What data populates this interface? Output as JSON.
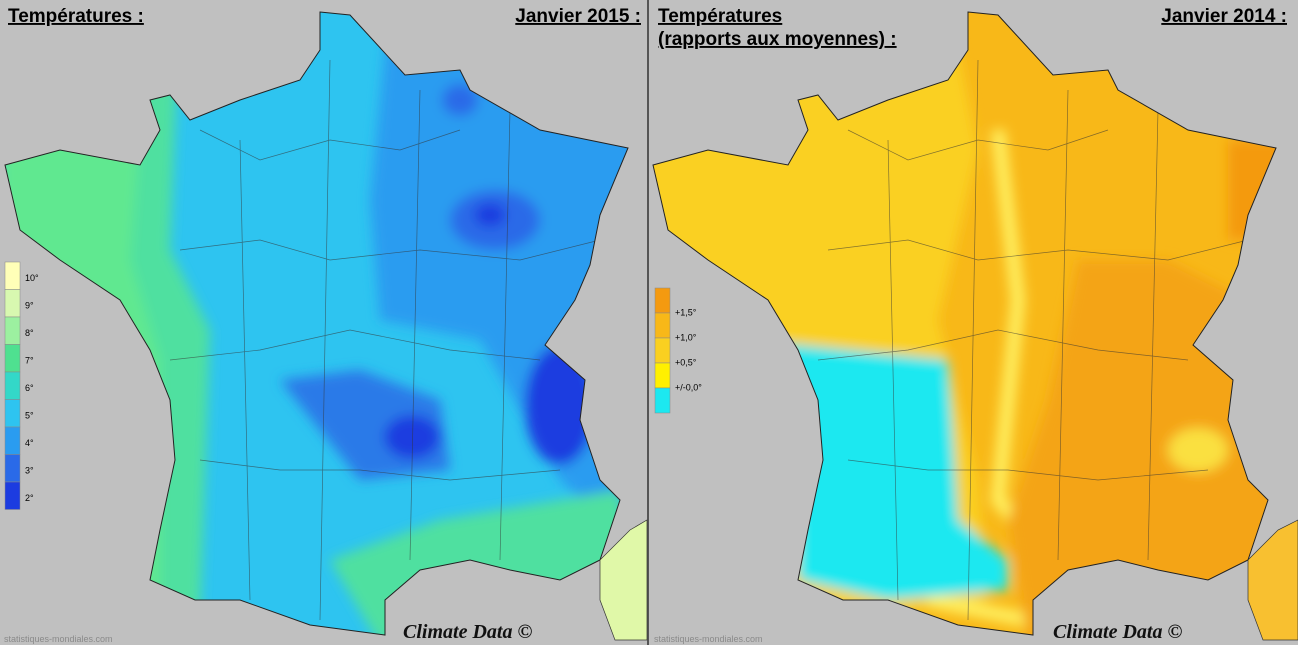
{
  "panels": [
    {
      "title_lines": [
        "Températures :"
      ],
      "period": "Janvier 2015 :",
      "legend": [
        "10°",
        "9°",
        "8°",
        "7°",
        "6°",
        "5°",
        "4°",
        "3°",
        "2°"
      ],
      "legend_colors": [
        "#ffffb8",
        "#d8f8b0",
        "#9cf0a0",
        "#4fe090",
        "#33d8c8",
        "#2ec4f0",
        "#2a9cf0",
        "#2a6ae8",
        "#1c3ce0"
      ],
      "credit": "Climate Data ©",
      "source": "statistiques-mondiales.com"
    },
    {
      "title_lines": [
        "Températures",
        "(rapports aux moyennes) :"
      ],
      "period": "Janvier 2014 :",
      "legend": [
        "+1,5°",
        "+1,0°",
        "+0,5°",
        "+/-0,0°"
      ],
      "legend_colors": [
        "#f49a10",
        "#f8b818",
        "#fad020",
        "#fff000",
        "#1ce8f0"
      ],
      "credit": "Climate Data ©",
      "source": "statistiques-mondiales.com"
    }
  ]
}
